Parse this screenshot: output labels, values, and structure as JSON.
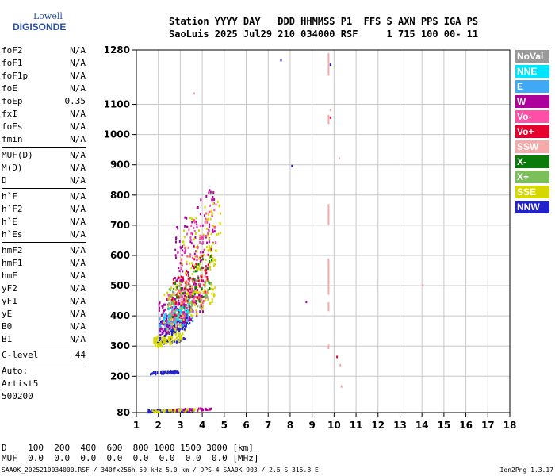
{
  "logo": {
    "line1": "Lowell",
    "line2": "DIGISONDE"
  },
  "header": {
    "line1": "Station YYYY DAY   DDD HHMMSS P1  FFS S AXN PPS IGA PS",
    "line2": "SaoLuis 2025 Jul29 210 034000 RSF     1 715 100 00- 11"
  },
  "params": [
    [
      {
        "name": "foF2",
        "value": "N/A"
      },
      {
        "name": "foF1",
        "value": "N/A"
      },
      {
        "name": "foF1p",
        "value": "N/A"
      },
      {
        "name": "foE",
        "value": "N/A"
      },
      {
        "name": "foEp",
        "value": "0.35"
      },
      {
        "name": "fxI",
        "value": "N/A"
      },
      {
        "name": "foEs",
        "value": "N/A"
      },
      {
        "name": "fmin",
        "value": "N/A"
      }
    ],
    [
      {
        "name": "MUF(D)",
        "value": "N/A"
      },
      {
        "name": "M(D)",
        "value": "N/A"
      },
      {
        "name": "D",
        "value": "N/A"
      }
    ],
    [
      {
        "name": "h`F",
        "value": "N/A"
      },
      {
        "name": "h`F2",
        "value": "N/A"
      },
      {
        "name": "h`E",
        "value": "N/A"
      },
      {
        "name": "h`Es",
        "value": "N/A"
      }
    ],
    [
      {
        "name": "hmF2",
        "value": "N/A"
      },
      {
        "name": "hmF1",
        "value": "N/A"
      },
      {
        "name": "hmE",
        "value": "N/A"
      },
      {
        "name": "yF2",
        "value": "N/A"
      },
      {
        "name": "yF1",
        "value": "N/A"
      },
      {
        "name": "yE",
        "value": "N/A"
      },
      {
        "name": "B0",
        "value": "N/A"
      },
      {
        "name": "B1",
        "value": "N/A"
      }
    ],
    [
      {
        "name": "C-level",
        "value": "44"
      }
    ]
  ],
  "auto": {
    "line1": "Auto:",
    "line2": "Artist5",
    "line3": "500200"
  },
  "legend": [
    {
      "label": "NoVal",
      "color": "#999999"
    },
    {
      "label": "NNE",
      "color": "#00e5ff"
    },
    {
      "label": "E",
      "color": "#3fa9f5"
    },
    {
      "label": "W",
      "color": "#b0009c"
    },
    {
      "label": "Vo-",
      "color": "#ff4fa7"
    },
    {
      "label": "Vo+",
      "color": "#e6002e"
    },
    {
      "label": "SSW",
      "color": "#f5aaaa"
    },
    {
      "label": "X-",
      "color": "#0a7a0a"
    },
    {
      "label": "X+",
      "color": "#7abf5a"
    },
    {
      "label": "SSE",
      "color": "#d7d700"
    },
    {
      "label": "NNW",
      "color": "#2222cc"
    }
  ],
  "chart_data": {
    "type": "scatter",
    "xlim": [
      1,
      18
    ],
    "ylim": [
      80,
      1280
    ],
    "x_ticks": [
      1,
      2,
      3,
      4,
      5,
      6,
      7,
      8,
      9,
      10,
      11,
      12,
      13,
      14,
      15,
      16,
      17,
      18
    ],
    "y_ticks": [
      80,
      200,
      300,
      400,
      500,
      600,
      700,
      800,
      900,
      1000,
      1100,
      1280
    ],
    "grid": true,
    "legend_position": "right",
    "xlabel": "",
    "ylabel": "",
    "clusters": [
      {
        "series": "NNW",
        "x": [
          1.5,
          3.6
        ],
        "y": [
          85,
          95
        ],
        "n": 160
      },
      {
        "series": "SSE",
        "x": [
          1.6,
          3.8
        ],
        "y": [
          85,
          95
        ],
        "n": 60
      },
      {
        "series": "W",
        "x": [
          2.6,
          4.4
        ],
        "y": [
          88,
          98
        ],
        "n": 30
      },
      {
        "series": "NNW",
        "x": [
          1.6,
          2.9
        ],
        "y": [
          210,
          220
        ],
        "n": 40
      },
      {
        "series": "NNW",
        "x": [
          1.9,
          3.2
        ],
        "y": [
          310,
          330
        ],
        "n": 40
      },
      {
        "series": "SSE",
        "x": [
          1.7,
          3.2
        ],
        "y": [
          300,
          360
        ],
        "n": 90
      },
      {
        "series": "NNW",
        "x": [
          2.0,
          3.4
        ],
        "y": [
          330,
          420
        ],
        "n": 120
      },
      {
        "series": "E",
        "x": [
          2.0,
          3.6
        ],
        "y": [
          340,
          450
        ],
        "n": 70
      },
      {
        "series": "W",
        "x": [
          2.0,
          4.0
        ],
        "y": [
          340,
          520
        ],
        "n": 160
      },
      {
        "series": "Vo-",
        "x": [
          2.4,
          4.2
        ],
        "y": [
          360,
          560
        ],
        "n": 140
      },
      {
        "series": "SSE",
        "x": [
          2.2,
          4.6
        ],
        "y": [
          350,
          620
        ],
        "n": 150
      },
      {
        "series": "X+",
        "x": [
          2.4,
          4.4
        ],
        "y": [
          380,
          580
        ],
        "n": 70
      },
      {
        "series": "X-",
        "x": [
          2.6,
          4.4
        ],
        "y": [
          400,
          600
        ],
        "n": 40
      },
      {
        "series": "NNE",
        "x": [
          2.2,
          3.4
        ],
        "y": [
          360,
          460
        ],
        "n": 40
      },
      {
        "series": "Vo+",
        "x": [
          2.6,
          4.3
        ],
        "y": [
          400,
          620
        ],
        "n": 60
      },
      {
        "series": "W",
        "x": [
          2.7,
          4.6
        ],
        "y": [
          520,
          820
        ],
        "n": 90
      },
      {
        "series": "SSE",
        "x": [
          2.9,
          4.8
        ],
        "y": [
          560,
          790
        ],
        "n": 60
      },
      {
        "series": "Vo-",
        "x": [
          3.0,
          4.6
        ],
        "y": [
          560,
          780
        ],
        "n": 50
      }
    ],
    "sparse_points": [
      {
        "series": "NNW",
        "x": [
          7.55
        ],
        "y": [
          1250
        ]
      },
      {
        "series": "NNW",
        "x": [
          9.8
        ],
        "y": [
          1235
        ]
      },
      {
        "series": "NNW",
        "x": [
          8.05
        ],
        "y": [
          900
        ]
      },
      {
        "series": "W",
        "x": [
          8.7
        ],
        "y": [
          450
        ]
      },
      {
        "series": "Vo+",
        "x": [
          9.8
        ],
        "y": [
          1060
        ]
      },
      {
        "series": "Vo+",
        "x": [
          10.1
        ],
        "y": [
          268
        ]
      },
      {
        "series": "SSW",
        "x": [
          10.2,
          10.25,
          10.3,
          9.8,
          3.6
        ],
        "y": [
          925,
          240,
          170,
          1085,
          1140
        ]
      },
      {
        "series": "SSW",
        "x": [
          14.0
        ],
        "y": [
          505
        ]
      }
    ],
    "ssw_streaks": [
      {
        "x": 9.75,
        "y": [
          1195,
          1270
        ]
      },
      {
        "x": 9.75,
        "y": [
          1035,
          1065
        ]
      },
      {
        "x": 9.75,
        "y": [
          700,
          770
        ]
      },
      {
        "x": 9.75,
        "y": [
          470,
          590
        ]
      },
      {
        "x": 9.75,
        "y": [
          415,
          445
        ]
      },
      {
        "x": 9.75,
        "y": [
          290,
          305
        ]
      }
    ]
  },
  "bottom": {
    "d_label": "D",
    "d_values": "    100  200  400  600  800 1000 1500 3000 [km]",
    "muf_label": "MUF",
    "muf_values": "  0.0  0.0  0.0  0.0  0.0  0.0  0.0  0.0 [MHz]"
  },
  "footer": {
    "left": "SAA0K_2025210034000.RSF / 340fx256h 50 kHz 5.0 km / DPS-4 SAA0K 903 / 2.6 S 315.8 E",
    "right": "Ion2Png 1.3.17"
  }
}
